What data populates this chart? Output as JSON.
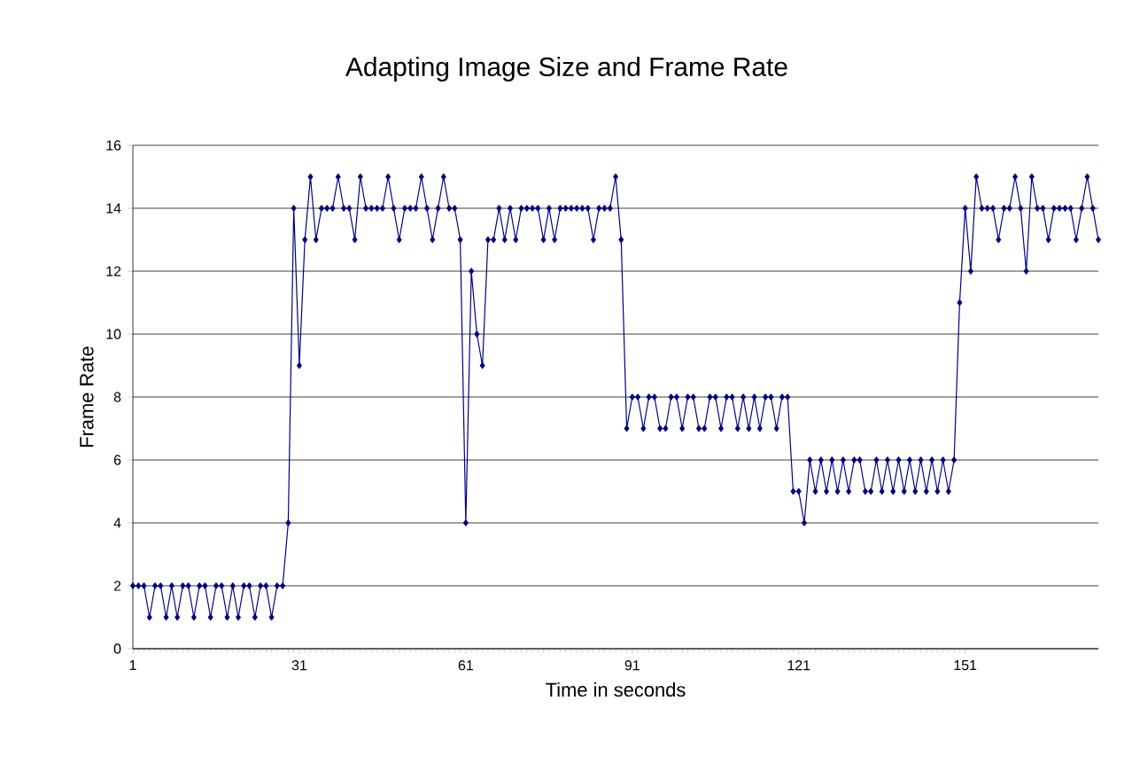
{
  "chart_data": {
    "type": "line",
    "title": "Adapting Image Size and Frame Rate",
    "xlabel": "Time in seconds",
    "ylabel": "Frame Rate",
    "x": [
      1,
      2,
      3,
      4,
      5,
      6,
      7,
      8,
      9,
      10,
      11,
      12,
      13,
      14,
      15,
      16,
      17,
      18,
      19,
      20,
      21,
      22,
      23,
      24,
      25,
      26,
      27,
      28,
      29,
      30,
      31,
      32,
      33,
      34,
      35,
      36,
      37,
      38,
      39,
      40,
      41,
      42,
      43,
      44,
      45,
      46,
      47,
      48,
      49,
      50,
      51,
      52,
      53,
      54,
      55,
      56,
      57,
      58,
      59,
      60,
      61,
      62,
      63,
      64,
      65,
      66,
      67,
      68,
      69,
      70,
      71,
      72,
      73,
      74,
      75,
      76,
      77,
      78,
      79,
      80,
      81,
      82,
      83,
      84,
      85,
      86,
      87,
      88,
      89,
      90,
      91,
      92,
      93,
      94,
      95,
      96,
      97,
      98,
      99,
      100,
      101,
      102,
      103,
      104,
      105,
      106,
      107,
      108,
      109,
      110,
      111,
      112,
      113,
      114,
      115,
      116,
      117,
      118,
      119,
      120,
      121,
      122,
      123,
      124,
      125,
      126,
      127,
      128,
      129,
      130,
      131,
      132,
      133,
      134,
      135,
      136,
      137,
      138,
      139,
      140,
      141,
      142,
      143,
      144,
      145,
      146,
      147,
      148,
      149,
      150,
      151,
      152,
      153,
      154,
      155,
      156,
      157,
      158,
      159,
      160,
      161,
      162,
      163,
      164,
      165,
      166,
      167,
      168,
      169,
      170,
      171,
      172,
      173,
      174,
      175
    ],
    "series": [
      {
        "color": "#000080",
        "values": [
          2,
          2,
          2,
          1,
          2,
          2,
          1,
          2,
          1,
          2,
          2,
          1,
          2,
          2,
          1,
          2,
          2,
          1,
          2,
          1,
          2,
          2,
          1,
          2,
          2,
          1,
          2,
          2,
          4,
          14,
          9,
          13,
          15,
          13,
          14,
          14,
          14,
          15,
          14,
          14,
          13,
          15,
          14,
          14,
          14,
          14,
          15,
          14,
          13,
          14,
          14,
          14,
          15,
          14,
          13,
          14,
          15,
          14,
          14,
          13,
          4,
          12,
          10,
          9,
          13,
          13,
          14,
          13,
          14,
          13,
          14,
          14,
          14,
          14,
          13,
          14,
          13,
          14,
          14,
          14,
          14,
          14,
          14,
          13,
          14,
          14,
          14,
          15,
          13,
          7,
          8,
          8,
          7,
          8,
          8,
          7,
          7,
          8,
          8,
          7,
          8,
          8,
          7,
          7,
          8,
          8,
          7,
          8,
          8,
          7,
          8,
          7,
          8,
          7,
          8,
          8,
          7,
          8,
          8,
          5,
          5,
          4,
          6,
          5,
          6,
          5,
          6,
          5,
          6,
          5,
          6,
          6,
          5,
          5,
          6,
          5,
          6,
          5,
          6,
          5,
          6,
          5,
          6,
          5,
          6,
          5,
          6,
          5,
          6,
          11,
          14,
          12,
          15,
          14,
          14,
          14,
          13,
          14,
          14,
          15,
          14,
          12,
          15,
          14,
          14,
          13,
          14,
          14,
          14,
          14,
          13,
          14,
          15,
          14,
          13
        ]
      }
    ],
    "xlim": [
      1,
      175
    ],
    "xticks": [
      1,
      31,
      61,
      91,
      121,
      151
    ],
    "ylim": [
      0,
      16
    ],
    "yticks": [
      0,
      2,
      4,
      6,
      8,
      10,
      12,
      14,
      16
    ],
    "grid": "y",
    "marker": "diamond",
    "line_style": "solid"
  }
}
